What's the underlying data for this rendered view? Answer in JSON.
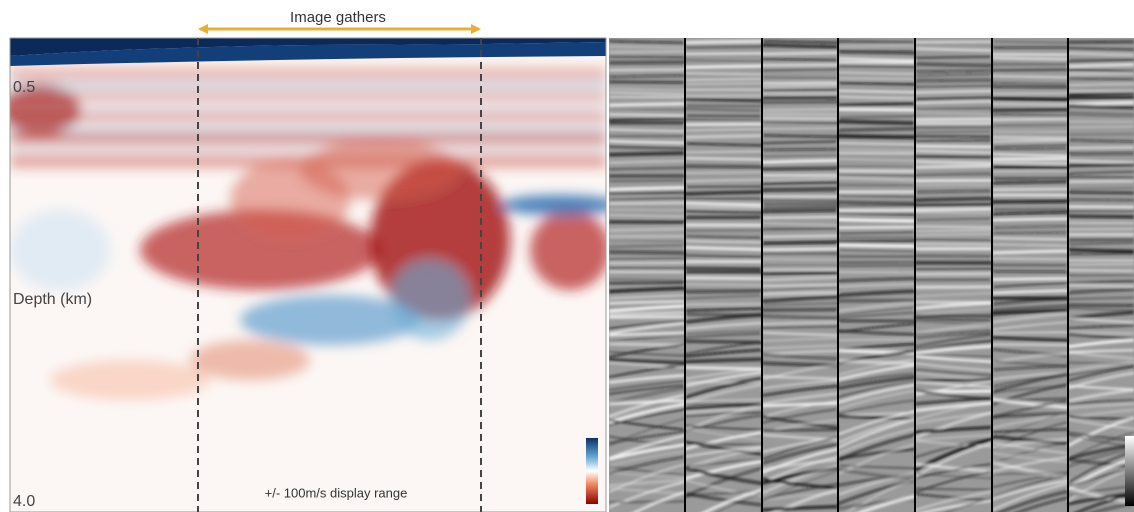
{
  "header": {
    "title": "Image gathers"
  },
  "axis": {
    "top_label": "0.5",
    "axis_label": "Depth (km)",
    "bottom_label": "4.0"
  },
  "footer": {
    "range_note": "+/- 100m/s display range"
  }
}
